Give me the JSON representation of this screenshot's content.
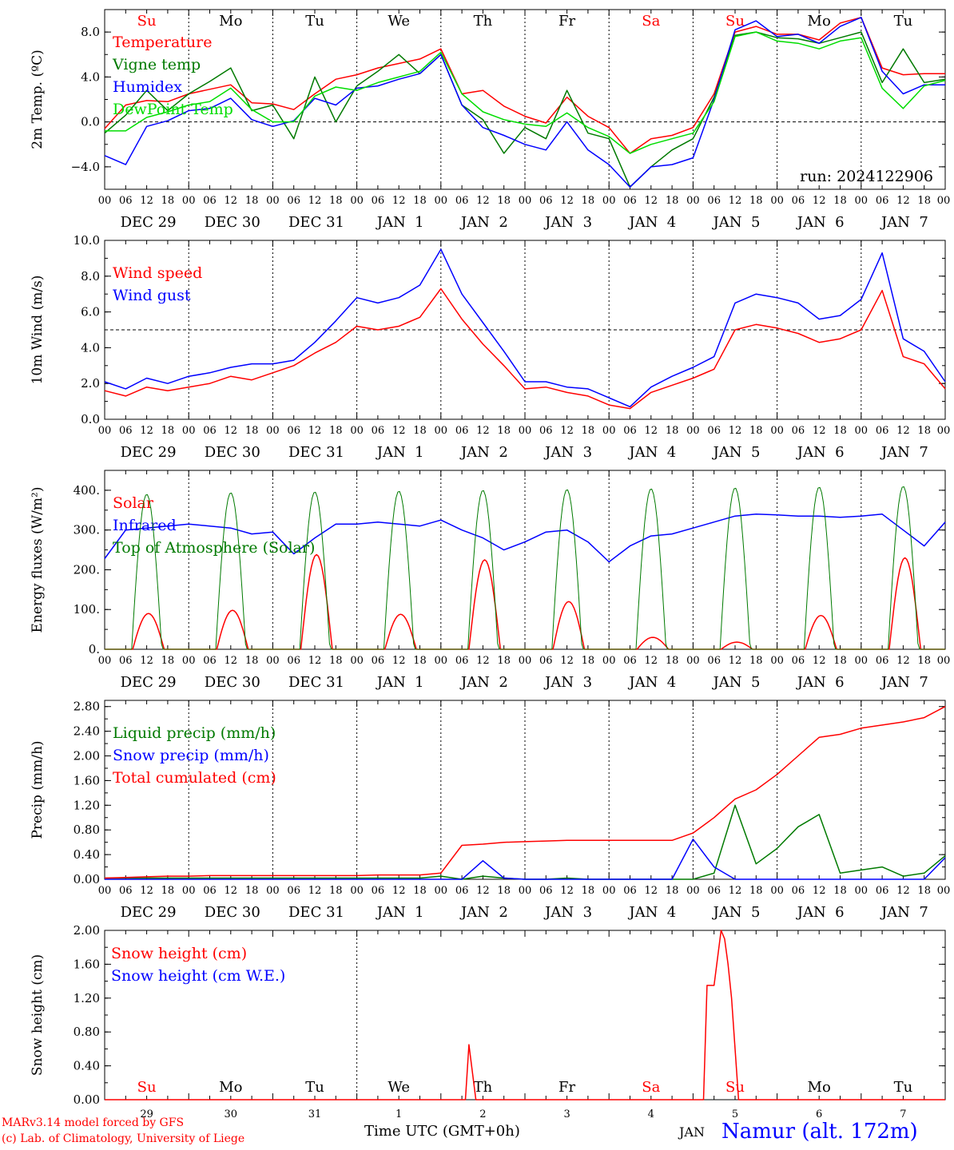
{
  "colors": {
    "red": "#ff0000",
    "green": "#007a00",
    "blue": "#0000ff",
    "lightgreen": "#00dd00",
    "black": "#000000"
  },
  "days": {
    "weekday": [
      "Su",
      "Mo",
      "Tu",
      "We",
      "Th",
      "Fr",
      "Sa",
      "Su",
      "Mo",
      "Tu"
    ],
    "weekend_index": [
      0,
      6,
      7
    ],
    "dates": [
      "DEC 29",
      "DEC 30",
      "DEC 31",
      "JAN  1",
      "JAN  2",
      "JAN  3",
      "JAN  4",
      "JAN  5",
      "JAN  6",
      "JAN  7"
    ],
    "hour_ticks": [
      "00",
      "06",
      "12",
      "18"
    ],
    "last_tick": "00",
    "bottom_numbers": [
      "29",
      "30",
      "31",
      "1",
      "2",
      "3",
      "4",
      "5",
      "6",
      "7"
    ],
    "bottom_month": "JAN"
  },
  "footer": {
    "credit1": "MARv3.14 model forced by GFS",
    "credit2": "(c) Lab. of Climatology, University of Liege",
    "axis_title": "Time UTC (GMT+0h)",
    "place": "Namur (alt. 172m)"
  },
  "chart_data": [
    {
      "type": "line",
      "ylabel": "2m Temp. (ºC)",
      "ylim": [
        -6,
        10
      ],
      "yticks": [
        -4,
        0,
        4,
        8
      ],
      "ytick_labels": [
        "−4.0",
        "0.0",
        "4.0",
        "8.0"
      ],
      "ref_line": 0,
      "annotation": "run: 2024122906",
      "x_hours_from_start": [
        0,
        6,
        12,
        18,
        24,
        30,
        36,
        42,
        48,
        54,
        60,
        66,
        72,
        78,
        84,
        90,
        96,
        102,
        108,
        114,
        120,
        126,
        132,
        138,
        144,
        150,
        156,
        162,
        168,
        174,
        180,
        186,
        192,
        198,
        204,
        210,
        216,
        222,
        228,
        234,
        240
      ],
      "series": [
        {
          "name": "Temperature",
          "color": "red",
          "values": [
            -0.6,
            1.5,
            1.9,
            1.8,
            2.5,
            2.9,
            3.3,
            1.7,
            1.6,
            1.1,
            2.5,
            3.8,
            4.2,
            4.8,
            5.2,
            5.6,
            6.5,
            2.5,
            2.8,
            1.4,
            0.5,
            -0.1,
            2.2,
            0.5,
            -0.5,
            -2.8,
            -1.5,
            -1.2,
            -0.5,
            2.5,
            8.0,
            8.5,
            7.8,
            7.8,
            7.3,
            8.8,
            9.3,
            4.8,
            4.2,
            4.3,
            4.3
          ]
        },
        {
          "name": "Vigne temp",
          "color": "green",
          "values": [
            -1.0,
            0.6,
            2.8,
            1.0,
            2.5,
            3.6,
            4.8,
            1.0,
            1.5,
            -1.5,
            4.0,
            0.0,
            3.2,
            4.5,
            6.0,
            4.3,
            6.0,
            1.5,
            0.2,
            -2.8,
            -0.5,
            -1.5,
            2.8,
            -1.0,
            -1.5,
            -5.8,
            -4.0,
            -2.5,
            -1.5,
            2.2,
            7.7,
            8.0,
            7.5,
            7.4,
            7.0,
            7.5,
            8.0,
            3.5,
            6.5,
            3.5,
            3.8
          ]
        },
        {
          "name": "Humidex",
          "color": "blue",
          "values": [
            -3.0,
            -3.8,
            -0.4,
            0.1,
            1.0,
            1.2,
            2.1,
            0.2,
            -0.4,
            0.1,
            2.1,
            1.5,
            3.0,
            3.2,
            3.8,
            4.3,
            6.0,
            1.5,
            -0.5,
            -1.2,
            -2.0,
            -2.5,
            0.0,
            -2.5,
            -3.8,
            -5.8,
            -4.0,
            -3.8,
            -3.2,
            2.0,
            8.2,
            9.0,
            7.6,
            7.8,
            7.0,
            8.5,
            9.3,
            4.5,
            2.5,
            3.3,
            3.3
          ]
        },
        {
          "name": "DewPoint Temp",
          "color": "lightgreen",
          "values": [
            -0.8,
            -0.8,
            0.4,
            0.9,
            1.5,
            1.8,
            3.0,
            1.1,
            0.0,
            0.0,
            2.3,
            3.1,
            2.8,
            3.5,
            4.0,
            4.5,
            6.2,
            2.5,
            0.9,
            0.2,
            -0.2,
            -0.4,
            0.8,
            -0.5,
            -1.3,
            -2.8,
            -2.0,
            -1.5,
            -1.0,
            1.8,
            7.6,
            8.0,
            7.2,
            7.0,
            6.5,
            7.2,
            7.5,
            3.0,
            1.2,
            3.2,
            3.7
          ]
        }
      ]
    },
    {
      "type": "line",
      "ylabel": "10m Wind (m/s)",
      "ylim": [
        0,
        10
      ],
      "yticks": [
        0,
        2,
        4,
        6,
        8,
        10
      ],
      "ytick_labels": [
        "0.0",
        "2.0",
        "4.0",
        "6.0",
        "8.0",
        "10.0"
      ],
      "ref_line": 5,
      "x_hours_from_start": [
        0,
        6,
        12,
        18,
        24,
        30,
        36,
        42,
        48,
        54,
        60,
        66,
        72,
        78,
        84,
        90,
        96,
        102,
        108,
        114,
        120,
        126,
        132,
        138,
        144,
        150,
        156,
        162,
        168,
        174,
        180,
        186,
        192,
        198,
        204,
        210,
        216,
        222,
        228,
        234,
        240
      ],
      "series": [
        {
          "name": "Wind speed",
          "color": "red",
          "values": [
            1.6,
            1.3,
            1.8,
            1.6,
            1.8,
            2.0,
            2.4,
            2.2,
            2.6,
            3.0,
            3.7,
            4.3,
            5.2,
            5.0,
            5.2,
            5.7,
            7.3,
            5.6,
            4.2,
            3.0,
            1.7,
            1.8,
            1.5,
            1.3,
            0.8,
            0.6,
            1.5,
            1.9,
            2.3,
            2.8,
            5.0,
            5.3,
            5.1,
            4.8,
            4.3,
            4.5,
            5.0,
            7.2,
            3.5,
            3.1,
            1.7
          ]
        },
        {
          "name": "Wind gust",
          "color": "blue",
          "values": [
            2.1,
            1.7,
            2.3,
            2.0,
            2.4,
            2.6,
            2.9,
            3.1,
            3.1,
            3.3,
            4.3,
            5.5,
            6.8,
            6.5,
            6.8,
            7.5,
            9.5,
            7.0,
            5.4,
            3.8,
            2.1,
            2.1,
            1.8,
            1.7,
            1.2,
            0.7,
            1.8,
            2.4,
            2.9,
            3.5,
            6.5,
            7.0,
            6.8,
            6.5,
            5.6,
            5.8,
            6.7,
            9.3,
            4.5,
            3.8,
            2.1
          ]
        }
      ]
    },
    {
      "type": "line",
      "ylabel": "Energy fluxes (W/m²)",
      "ylim": [
        0,
        450
      ],
      "yticks": [
        0,
        100,
        200,
        300,
        400
      ],
      "ytick_labels": [
        "0.",
        "100.",
        "200.",
        "300.",
        "400."
      ],
      "x_hours_from_start": [
        0,
        6,
        12,
        18,
        24,
        30,
        36,
        42,
        48,
        54,
        60,
        66,
        72,
        78,
        84,
        90,
        96,
        102,
        108,
        114,
        120,
        126,
        132,
        138,
        144,
        150,
        156,
        162,
        168,
        174,
        180,
        186,
        192,
        198,
        204,
        210,
        216,
        222,
        228,
        234,
        240
      ],
      "series": [
        {
          "name": "Solar",
          "color": "red",
          "peaks": [
            90,
            98,
            238,
            88,
            225,
            120,
            30,
            18,
            85,
            230
          ],
          "peak_hour": 12.5,
          "half_width_hours": 4.5
        },
        {
          "name": "Infrared",
          "color": "blue",
          "values": [
            228,
            300,
            305,
            310,
            315,
            310,
            305,
            290,
            295,
            240,
            280,
            315,
            315,
            320,
            315,
            310,
            325,
            300,
            280,
            250,
            270,
            295,
            300,
            270,
            220,
            260,
            285,
            290,
            305,
            320,
            335,
            340,
            338,
            335,
            335,
            332,
            335,
            340,
            300,
            260,
            320
          ]
        },
        {
          "name": "Top of Atmosphere (Solar)",
          "color": "green",
          "peaks": [
            390,
            394,
            396,
            398,
            400,
            402,
            404,
            406,
            408,
            410
          ],
          "peak_hour": 12.0,
          "half_width_hours": 4.3
        }
      ]
    },
    {
      "type": "line",
      "ylabel": "Precip (mm/h)",
      "ylim": [
        0,
        2.9
      ],
      "yticks": [
        0,
        0.4,
        0.8,
        1.2,
        1.6,
        2.0,
        2.4,
        2.8
      ],
      "ytick_labels": [
        "0.00",
        "0.40",
        "0.80",
        "1.20",
        "1.60",
        "2.00",
        "2.40",
        "2.80"
      ],
      "x_hours_from_start": [
        0,
        6,
        12,
        18,
        24,
        30,
        36,
        42,
        48,
        54,
        60,
        66,
        72,
        78,
        84,
        90,
        96,
        102,
        108,
        114,
        120,
        126,
        132,
        138,
        144,
        150,
        156,
        162,
        168,
        174,
        180,
        186,
        192,
        198,
        204,
        210,
        216,
        222,
        228,
        234,
        240
      ],
      "series": [
        {
          "name": "Liquid precip (mm/h)",
          "color": "green",
          "values": [
            0.02,
            0.02,
            0.02,
            0.02,
            0.02,
            0.02,
            0.02,
            0.02,
            0.02,
            0.02,
            0.02,
            0.02,
            0.02,
            0.02,
            0.02,
            0.02,
            0.05,
            0.0,
            0.05,
            0.02,
            0.0,
            0.0,
            0.02,
            0.0,
            0.0,
            0.0,
            0.0,
            0.0,
            0.0,
            0.1,
            1.2,
            0.25,
            0.5,
            0.85,
            1.05,
            0.1,
            0.15,
            0.2,
            0.05,
            0.1,
            0.38
          ]
        },
        {
          "name": "Snow precip (mm/h)",
          "color": "blue",
          "values": [
            0,
            0,
            0,
            0,
            0,
            0,
            0,
            0,
            0,
            0,
            0,
            0,
            0,
            0,
            0,
            0,
            0,
            0,
            0.3,
            0.02,
            0,
            0,
            0,
            0,
            0,
            0,
            0,
            0,
            0.65,
            0.2,
            0,
            0,
            0,
            0,
            0,
            0,
            0,
            0,
            0,
            0,
            0.35
          ]
        },
        {
          "name": "Total cumulated (cm)",
          "color": "red",
          "values": [
            0.02,
            0.03,
            0.04,
            0.05,
            0.05,
            0.06,
            0.06,
            0.06,
            0.06,
            0.06,
            0.06,
            0.06,
            0.06,
            0.07,
            0.07,
            0.07,
            0.1,
            0.55,
            0.57,
            0.6,
            0.61,
            0.62,
            0.63,
            0.63,
            0.63,
            0.63,
            0.63,
            0.63,
            0.75,
            1.0,
            1.3,
            1.45,
            1.7,
            2.0,
            2.3,
            2.35,
            2.45,
            2.5,
            2.55,
            2.62,
            2.8
          ]
        }
      ]
    },
    {
      "type": "line",
      "ylabel": "Snow height (cm)",
      "ylim": [
        0,
        2.0
      ],
      "yticks": [
        0,
        0.4,
        0.8,
        1.2,
        1.6,
        2.0
      ],
      "ytick_labels": [
        "0.00",
        "0.40",
        "0.80",
        "1.20",
        "1.60",
        "2.00"
      ],
      "x_hours_from_start": [
        0,
        24,
        48,
        72,
        96,
        100,
        102,
        103,
        104,
        106,
        108,
        120,
        144,
        168,
        170,
        171,
        172,
        174,
        176,
        177,
        178,
        179,
        180,
        181,
        182,
        192,
        216,
        240
      ],
      "series": [
        {
          "name": "Snow height (cm)",
          "color": "red",
          "values": [
            0,
            0,
            0,
            0,
            0,
            0,
            0,
            0,
            0.65,
            0,
            0,
            0,
            0,
            0,
            0,
            0,
            1.35,
            1.35,
            2.0,
            1.9,
            1.6,
            1.2,
            0.6,
            0,
            0,
            0,
            0,
            0
          ]
        },
        {
          "name": "Snow height (cm W.E.)",
          "color": "blue",
          "values": []
        }
      ]
    }
  ]
}
